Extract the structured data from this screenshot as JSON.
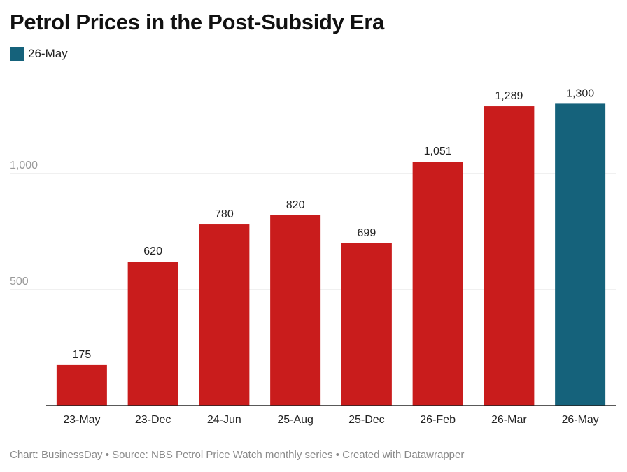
{
  "title": "Petrol Prices in the Post-Subsidy Era",
  "legend": {
    "label": "26-May",
    "color": "#15627b"
  },
  "footer": "Chart: BusinessDay • Source: NBS Petrol Price Watch monthly series • Created with Datawrapper",
  "colors": {
    "default_bar": "#c91c1c",
    "highlight_bar": "#15627b",
    "grid": "#e1e1e1",
    "tick_text": "#9a9a9a",
    "label_text": "#222222"
  },
  "chart_data": {
    "type": "bar",
    "title": "Petrol Prices in the Post-Subsidy Era",
    "categories": [
      "23-May",
      "23-Dec",
      "24-Jun",
      "25-Aug",
      "25-Dec",
      "26-Feb",
      "26-Mar",
      "26-May"
    ],
    "values": [
      175,
      620,
      780,
      820,
      699,
      1051,
      1289,
      1300
    ],
    "value_labels": [
      "175",
      "620",
      "780",
      "820",
      "699",
      "1,051",
      "1,289",
      "1,300"
    ],
    "highlight_index": 7,
    "yticks": [
      500,
      1000
    ],
    "ytick_labels": [
      "500",
      "1,000"
    ],
    "ylim": [
      0,
      1300
    ],
    "grid": true,
    "legend_placement": "top-left"
  }
}
